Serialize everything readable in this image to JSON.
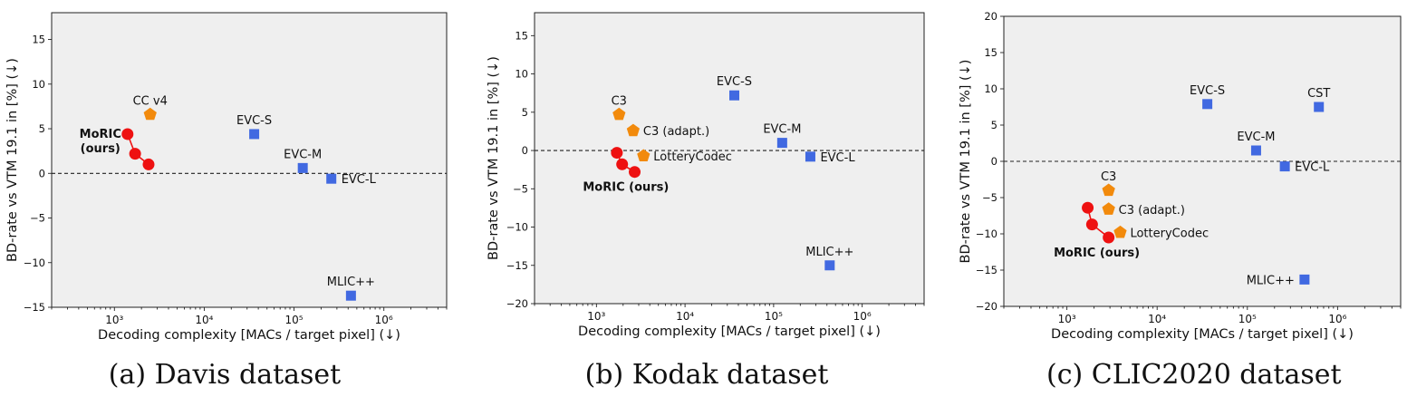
{
  "captions": [
    "(a) Davis dataset",
    "(b) Kodak dataset",
    "(c) CLIC2020 dataset"
  ],
  "colors": {
    "ours": "#ee1111",
    "pentagon": "#f28a0c",
    "square": "#4169e1",
    "plot_bg": "#efefef"
  },
  "chart_data": [
    {
      "type": "scatter",
      "title": "",
      "xlabel": "Decoding complexity [MACs / target pixel] (↓)",
      "ylabel": "BD-rate vs VTM 19.1 in [%] (↓)",
      "xscale": "log",
      "xlim": [
        200,
        5000000
      ],
      "ylim": [
        -15,
        18
      ],
      "xticks": [
        1000,
        10000,
        100000,
        1000000
      ],
      "xtick_labels": [
        "10³",
        "10⁴",
        "10⁵",
        "10⁶"
      ],
      "yticks": [
        -15,
        -10,
        -5,
        0,
        5,
        10,
        15
      ],
      "ytick_labels": [
        "−15",
        "−10",
        "−5",
        "0",
        "5",
        "10",
        "15"
      ],
      "zero_line": true,
      "ours": {
        "name": "MoRIC (ours)",
        "label_lines": [
          "MoRIC",
          "(ours)"
        ],
        "x": [
          1400,
          1700,
          2400
        ],
        "y": [
          4.4,
          2.2,
          1.0
        ]
      },
      "points": [
        {
          "name": "CC v4",
          "x": 2500,
          "y": 6.6,
          "marker": "pentagon",
          "label_anchor": "above"
        },
        {
          "name": "EVC-S",
          "x": 36000,
          "y": 4.4,
          "marker": "square",
          "label_anchor": "above"
        },
        {
          "name": "EVC-M",
          "x": 125000,
          "y": 0.6,
          "marker": "square",
          "label_anchor": "above"
        },
        {
          "name": "EVC-L",
          "x": 260000,
          "y": -0.6,
          "marker": "square",
          "label_anchor": "right"
        },
        {
          "name": "MLIC++",
          "x": 430000,
          "y": -13.7,
          "marker": "square",
          "label_anchor": "above"
        }
      ]
    },
    {
      "type": "scatter",
      "title": "",
      "xlabel": "Decoding complexity [MACs / target pixel] (↓)",
      "ylabel": "BD-rate vs VTM 19.1 in [%] (↓)",
      "xscale": "log",
      "xlim": [
        200,
        5000000
      ],
      "ylim": [
        -20,
        18
      ],
      "xticks": [
        1000,
        10000,
        100000,
        1000000
      ],
      "xtick_labels": [
        "10³",
        "10⁴",
        "10⁵",
        "10⁶"
      ],
      "yticks": [
        -20,
        -15,
        -10,
        -5,
        0,
        5,
        10,
        15
      ],
      "ytick_labels": [
        "−20",
        "−15",
        "−10",
        "−5",
        "0",
        "5",
        "10",
        "15"
      ],
      "zero_line": true,
      "ours": {
        "name": "MoRIC (ours)",
        "label_lines": [
          "MoRIC (ours)"
        ],
        "x": [
          1700,
          1950,
          2700
        ],
        "y": [
          -0.3,
          -1.8,
          -2.8
        ]
      },
      "points": [
        {
          "name": "C3",
          "x": 1800,
          "y": 4.7,
          "marker": "pentagon",
          "label_anchor": "above"
        },
        {
          "name": "C3 (adapt.)",
          "x": 2600,
          "y": 2.6,
          "marker": "pentagon",
          "label_anchor": "right"
        },
        {
          "name": "LotteryCodec",
          "x": 3400,
          "y": -0.7,
          "marker": "pentagon",
          "label_anchor": "right"
        },
        {
          "name": "EVC-S",
          "x": 36000,
          "y": 7.2,
          "marker": "square",
          "label_anchor": "above"
        },
        {
          "name": "EVC-M",
          "x": 125000,
          "y": 1.0,
          "marker": "square",
          "label_anchor": "above"
        },
        {
          "name": "EVC-L",
          "x": 260000,
          "y": -0.8,
          "marker": "square",
          "label_anchor": "right"
        },
        {
          "name": "MLIC++",
          "x": 430000,
          "y": -15.0,
          "marker": "square",
          "label_anchor": "above"
        }
      ]
    },
    {
      "type": "scatter",
      "title": "",
      "xlabel": "Decoding complexity [MACs / target pixel] (↓)",
      "ylabel": "BD-rate vs VTM 19.1 in [%] (↓)",
      "xscale": "log",
      "xlim": [
        200,
        5000000
      ],
      "ylim": [
        -20,
        20
      ],
      "xticks": [
        1000,
        10000,
        100000,
        1000000
      ],
      "xtick_labels": [
        "10³",
        "10⁴",
        "10⁵",
        "10⁶"
      ],
      "yticks": [
        -20,
        -15,
        -10,
        -5,
        0,
        5,
        10,
        15,
        20
      ],
      "ytick_labels": [
        "−20",
        "−15",
        "−10",
        "−5",
        "0",
        "5",
        "10",
        "15",
        "20"
      ],
      "zero_line": true,
      "ours": {
        "name": "MoRIC (ours)",
        "label_lines": [
          "MoRIC (ours)"
        ],
        "x": [
          1700,
          1900,
          2900
        ],
        "y": [
          -6.4,
          -8.7,
          -10.5
        ]
      },
      "points": [
        {
          "name": "C3",
          "x": 2900,
          "y": -4.0,
          "marker": "pentagon",
          "label_anchor": "above"
        },
        {
          "name": "C3 (adapt.)",
          "x": 2900,
          "y": -6.6,
          "marker": "pentagon",
          "label_anchor": "right"
        },
        {
          "name": "LotteryCodec",
          "x": 3900,
          "y": -9.8,
          "marker": "pentagon",
          "label_anchor": "right"
        },
        {
          "name": "EVC-S",
          "x": 36000,
          "y": 7.9,
          "marker": "square",
          "label_anchor": "above"
        },
        {
          "name": "EVC-M",
          "x": 125000,
          "y": 1.5,
          "marker": "square",
          "label_anchor": "above"
        },
        {
          "name": "EVC-L",
          "x": 260000,
          "y": -0.7,
          "marker": "square",
          "label_anchor": "right"
        },
        {
          "name": "CST",
          "x": 620000,
          "y": 7.5,
          "marker": "square",
          "label_anchor": "above"
        },
        {
          "name": "MLIC++",
          "x": 430000,
          "y": -16.3,
          "marker": "square",
          "label_anchor": "left"
        }
      ]
    }
  ]
}
